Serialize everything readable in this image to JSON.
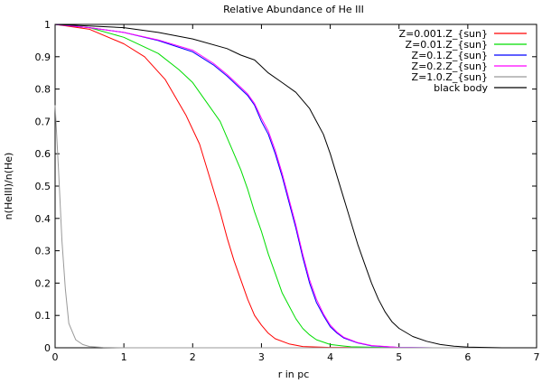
{
  "chart_data": {
    "type": "line",
    "title": "Relative Abundance of He III",
    "xlabel": "r in pc",
    "ylabel": "n(HeIII)/n(He)",
    "xlim": [
      0,
      7
    ],
    "ylim": [
      0,
      1
    ],
    "xticks": [
      0,
      1,
      2,
      3,
      4,
      5,
      6,
      7
    ],
    "yticks": [
      0,
      0.1,
      0.2,
      0.3,
      0.4,
      0.5,
      0.6,
      0.7,
      0.8,
      0.9,
      1
    ],
    "grid": false,
    "legend_position": "top-right",
    "series": [
      {
        "name": "Z=0.001.Z_{sun}",
        "color": "#ff0000",
        "points": [
          [
            0,
            1
          ],
          [
            0.5,
            0.985
          ],
          [
            1,
            0.94
          ],
          [
            1.3,
            0.9
          ],
          [
            1.6,
            0.83
          ],
          [
            1.9,
            0.72
          ],
          [
            2.1,
            0.63
          ],
          [
            2.2,
            0.56
          ],
          [
            2.4,
            0.42
          ],
          [
            2.5,
            0.34
          ],
          [
            2.6,
            0.27
          ],
          [
            2.7,
            0.21
          ],
          [
            2.8,
            0.15
          ],
          [
            2.9,
            0.1
          ],
          [
            3.0,
            0.07
          ],
          [
            3.1,
            0.045
          ],
          [
            3.2,
            0.028
          ],
          [
            3.4,
            0.012
          ],
          [
            3.6,
            0.004
          ],
          [
            4.0,
            0.001
          ],
          [
            5,
            0
          ],
          [
            7,
            0
          ]
        ]
      },
      {
        "name": "Z=0.01.Z_{sun}",
        "color": "#00dd00",
        "points": [
          [
            0,
            1
          ],
          [
            0.5,
            0.99
          ],
          [
            1,
            0.96
          ],
          [
            1.5,
            0.91
          ],
          [
            1.8,
            0.86
          ],
          [
            2,
            0.82
          ],
          [
            2.2,
            0.76
          ],
          [
            2.4,
            0.7
          ],
          [
            2.6,
            0.6
          ],
          [
            2.7,
            0.55
          ],
          [
            2.8,
            0.49
          ],
          [
            2.9,
            0.42
          ],
          [
            3.0,
            0.36
          ],
          [
            3.1,
            0.29
          ],
          [
            3.2,
            0.23
          ],
          [
            3.3,
            0.17
          ],
          [
            3.4,
            0.13
          ],
          [
            3.5,
            0.09
          ],
          [
            3.6,
            0.06
          ],
          [
            3.7,
            0.04
          ],
          [
            3.8,
            0.025
          ],
          [
            4.0,
            0.01
          ],
          [
            4.3,
            0.003
          ],
          [
            5,
            0
          ],
          [
            7,
            0
          ]
        ]
      },
      {
        "name": "Z=0.1.Z_{sun}",
        "color": "#0000ff",
        "points": [
          [
            0,
            1
          ],
          [
            0.5,
            0.99
          ],
          [
            1,
            0.975
          ],
          [
            1.5,
            0.95
          ],
          [
            2,
            0.915
          ],
          [
            2.3,
            0.875
          ],
          [
            2.5,
            0.84
          ],
          [
            2.7,
            0.8
          ],
          [
            2.8,
            0.78
          ],
          [
            2.9,
            0.75
          ],
          [
            3.0,
            0.7
          ],
          [
            3.1,
            0.66
          ],
          [
            3.2,
            0.6
          ],
          [
            3.3,
            0.53
          ],
          [
            3.4,
            0.45
          ],
          [
            3.5,
            0.37
          ],
          [
            3.6,
            0.28
          ],
          [
            3.7,
            0.2
          ],
          [
            3.8,
            0.14
          ],
          [
            3.9,
            0.1
          ],
          [
            4.0,
            0.065
          ],
          [
            4.1,
            0.045
          ],
          [
            4.2,
            0.03
          ],
          [
            4.4,
            0.015
          ],
          [
            4.6,
            0.006
          ],
          [
            5,
            0.001
          ],
          [
            5.5,
            0
          ],
          [
            7,
            0
          ]
        ]
      },
      {
        "name": "Z=0.2.Z_{sun}",
        "color": "#ff00ff",
        "points": [
          [
            0,
            1
          ],
          [
            0.5,
            0.99
          ],
          [
            1,
            0.975
          ],
          [
            1.5,
            0.952
          ],
          [
            2,
            0.92
          ],
          [
            2.3,
            0.88
          ],
          [
            2.5,
            0.845
          ],
          [
            2.7,
            0.805
          ],
          [
            2.8,
            0.785
          ],
          [
            2.9,
            0.755
          ],
          [
            3.0,
            0.71
          ],
          [
            3.1,
            0.67
          ],
          [
            3.2,
            0.61
          ],
          [
            3.3,
            0.54
          ],
          [
            3.4,
            0.46
          ],
          [
            3.5,
            0.38
          ],
          [
            3.6,
            0.29
          ],
          [
            3.7,
            0.21
          ],
          [
            3.8,
            0.15
          ],
          [
            3.9,
            0.105
          ],
          [
            4.0,
            0.07
          ],
          [
            4.1,
            0.048
          ],
          [
            4.2,
            0.032
          ],
          [
            4.4,
            0.016
          ],
          [
            4.6,
            0.007
          ],
          [
            5,
            0.001
          ],
          [
            5.5,
            0
          ],
          [
            7,
            0
          ]
        ]
      },
      {
        "name": "Z=1.0.Z_{sun}",
        "color": "#999999",
        "points": [
          [
            0,
            0.75
          ],
          [
            0.05,
            0.55
          ],
          [
            0.1,
            0.33
          ],
          [
            0.15,
            0.18
          ],
          [
            0.2,
            0.075
          ],
          [
            0.3,
            0.025
          ],
          [
            0.4,
            0.01
          ],
          [
            0.5,
            0.004
          ],
          [
            0.7,
            0.001
          ],
          [
            1,
            0
          ],
          [
            7,
            0
          ]
        ]
      },
      {
        "name": "black body",
        "color": "#000000",
        "points": [
          [
            0,
            1
          ],
          [
            1,
            0.99
          ],
          [
            1.5,
            0.975
          ],
          [
            2,
            0.955
          ],
          [
            2.5,
            0.925
          ],
          [
            2.7,
            0.905
          ],
          [
            2.9,
            0.89
          ],
          [
            3.0,
            0.87
          ],
          [
            3.1,
            0.85
          ],
          [
            3.3,
            0.82
          ],
          [
            3.5,
            0.79
          ],
          [
            3.7,
            0.74
          ],
          [
            3.8,
            0.7
          ],
          [
            3.9,
            0.66
          ],
          [
            4.0,
            0.6
          ],
          [
            4.1,
            0.53
          ],
          [
            4.2,
            0.46
          ],
          [
            4.3,
            0.39
          ],
          [
            4.4,
            0.32
          ],
          [
            4.5,
            0.26
          ],
          [
            4.6,
            0.2
          ],
          [
            4.7,
            0.15
          ],
          [
            4.8,
            0.11
          ],
          [
            4.9,
            0.08
          ],
          [
            5.0,
            0.06
          ],
          [
            5.2,
            0.035
          ],
          [
            5.4,
            0.02
          ],
          [
            5.6,
            0.01
          ],
          [
            5.8,
            0.005
          ],
          [
            6.0,
            0.002
          ],
          [
            6.5,
            0
          ],
          [
            7,
            0
          ]
        ]
      }
    ]
  }
}
